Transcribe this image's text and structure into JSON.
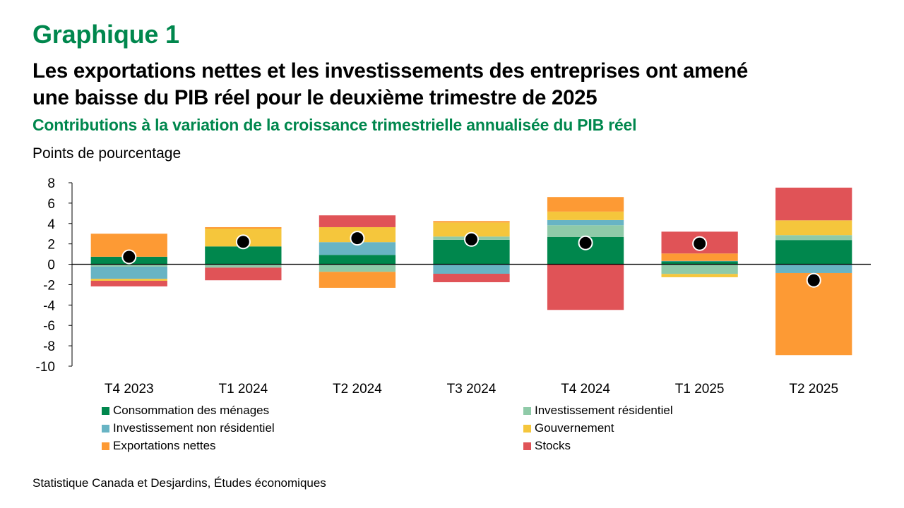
{
  "header": {
    "label": "Graphique 1",
    "title_line1": "Les exportations nettes et les investissements des entreprises ont amené",
    "title_line2": "une baisse du PIB réel pour le deuxième trimestre de 2025",
    "subtitle": "Contributions à la variation de la croissance trimestrielle annualisée du PIB réel",
    "y_unit": "Points de pourcentage"
  },
  "source": "Statistique Canada et Desjardins, Études économiques",
  "chart_data": {
    "type": "bar",
    "stacked": true,
    "title": "Les exportations nettes et les investissements des entreprises ont amené une baisse du PIB réel pour le deuxième trimestre de 2025",
    "subtitle": "Contributions à la variation de la croissance trimestrielle annualisée du PIB réel",
    "xlabel": "",
    "ylabel": "Points de pourcentage",
    "ylim": [
      -10,
      8
    ],
    "yticks": [
      8,
      6,
      4,
      2,
      0,
      -2,
      -4,
      -6,
      -8,
      -10
    ],
    "grid": false,
    "legend_position": "bottom",
    "categories": [
      "T4 2023",
      "T1 2024",
      "T2 2024",
      "T3 2024",
      "T4 2024",
      "T1 2025",
      "T2 2025"
    ],
    "series": [
      {
        "name": "Consommation des ménages",
        "color": "#00874d",
        "values": [
          0.74,
          1.75,
          0.92,
          2.4,
          2.67,
          0.28,
          2.38
        ]
      },
      {
        "name": "Investissement résidentiel",
        "color": "#8fcaa8",
        "values": [
          -0.23,
          -0.33,
          -0.74,
          0.32,
          1.16,
          -0.95,
          0.48
        ]
      },
      {
        "name": "Investissement non résidentiel",
        "color": "#68b4c4",
        "values": [
          -1.2,
          0.0,
          1.25,
          -0.93,
          0.51,
          0.05,
          -0.86
        ]
      },
      {
        "name": "Gouvernement",
        "color": "#f5c63c",
        "values": [
          -0.19,
          1.75,
          1.47,
          1.38,
          0.83,
          -0.32,
          1.45
        ]
      },
      {
        "name": "Exportations nettes",
        "color": "#fd9a34",
        "values": [
          2.26,
          0.14,
          -1.57,
          0.14,
          1.43,
          0.73,
          -8.05
        ]
      },
      {
        "name": "Stocks",
        "color": "#e05357",
        "values": [
          -0.55,
          -1.24,
          1.16,
          -0.83,
          -4.48,
          2.14,
          3.21
        ]
      }
    ],
    "markers": {
      "name": "PIB réel",
      "color": "#000000",
      "values": [
        0.73,
        2.2,
        2.56,
        2.44,
        2.1,
        2.03,
        -1.57
      ]
    }
  }
}
